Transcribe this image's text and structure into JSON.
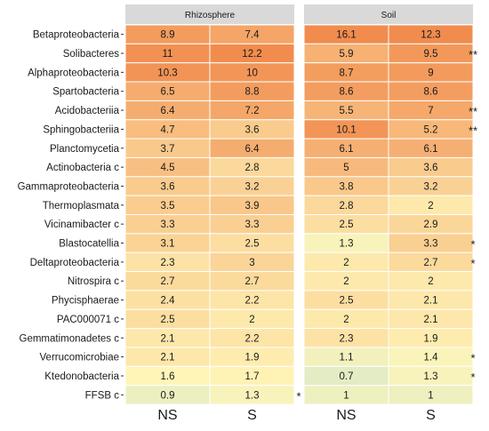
{
  "chart_data": {
    "type": "heatmap",
    "panels": [
      {
        "name": "Rhizosphere",
        "columns": [
          "NS",
          "S"
        ],
        "values": [
          [
            8.9,
            7.4
          ],
          [
            11,
            12.2
          ],
          [
            10.3,
            10
          ],
          [
            6.5,
            8.8
          ],
          [
            6.4,
            7.2
          ],
          [
            4.7,
            3.6
          ],
          [
            3.7,
            6.4
          ],
          [
            4.5,
            2.8
          ],
          [
            3.6,
            3.2
          ],
          [
            3.5,
            3.9
          ],
          [
            3.3,
            3.3
          ],
          [
            3.1,
            2.5
          ],
          [
            2.3,
            3
          ],
          [
            2.7,
            2.7
          ],
          [
            2.4,
            2.2
          ],
          [
            2.5,
            2
          ],
          [
            2.1,
            2.2
          ],
          [
            2.1,
            1.9
          ],
          [
            1.6,
            1.7
          ],
          [
            0.9,
            1.3
          ]
        ],
        "significance": [
          "",
          "",
          "",
          "",
          "",
          "",
          "",
          "",
          "",
          "",
          "",
          "",
          "",
          "",
          "",
          "",
          "",
          "",
          "",
          "*"
        ]
      },
      {
        "name": "Soil",
        "columns": [
          "NS",
          "S"
        ],
        "values": [
          [
            16.1,
            12.3
          ],
          [
            5.9,
            9.5
          ],
          [
            8.7,
            9
          ],
          [
            8.6,
            8.6
          ],
          [
            5.5,
            7
          ],
          [
            10.1,
            5.2
          ],
          [
            6.1,
            6.1
          ],
          [
            5,
            3.6
          ],
          [
            3.8,
            3.2
          ],
          [
            2.8,
            2
          ],
          [
            2.5,
            2.9
          ],
          [
            1.3,
            3.3
          ],
          [
            2,
            2.7
          ],
          [
            2,
            2
          ],
          [
            2.5,
            2.1
          ],
          [
            2,
            2.1
          ],
          [
            2.3,
            1.9
          ],
          [
            1.1,
            1.4
          ],
          [
            0.7,
            1.3
          ],
          [
            1,
            1
          ]
        ],
        "significance": [
          "",
          "**",
          "",
          "",
          "**",
          "**",
          "",
          "",
          "",
          "",
          "",
          "*",
          "*",
          "",
          "",
          "",
          "",
          "*",
          "*",
          ""
        ]
      }
    ],
    "rows": [
      "Betaproteobacteria",
      "Solibacteres",
      "Alphaproteobacteria",
      "Spartobacteria",
      "Acidobacteriia",
      "Sphingobacteriia",
      "Planctomycetia",
      "Actinobacteria c",
      "Gammaproteobacteria",
      "Thermoplasmata",
      "Vicinamibacter c",
      "Blastocatellia",
      "Deltaproteobacteria",
      "Nitrospira c",
      "Phycisphaerae",
      "PAC000071 c",
      "Gemmatimonadetes c",
      "Verrucomicrobiae",
      "Ktedonobacteria",
      "FFSB c"
    ],
    "color_scale": {
      "low": "#e3ecc4",
      "mid": "#fff5b8",
      "high": "#f18c4e"
    },
    "strip_color": "#d9d9d9",
    "legend": false,
    "grid": false
  }
}
